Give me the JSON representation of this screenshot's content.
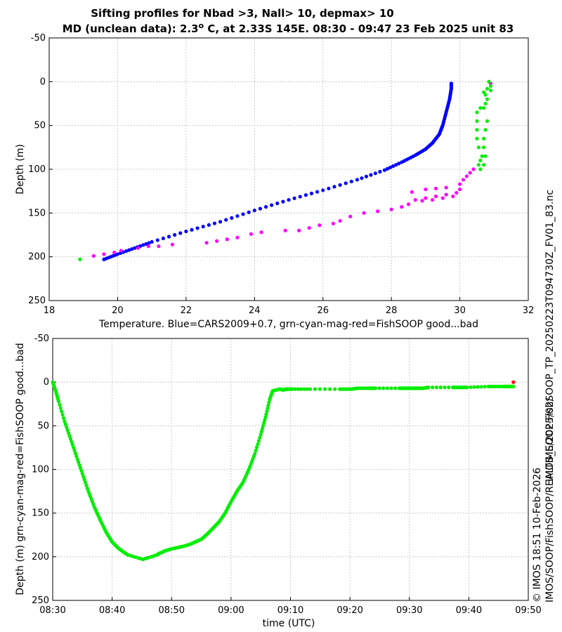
{
  "title_line1": "Sifting profiles for Nbad >3, Nall> 10, depmax> 10",
  "title_line2_prefix": "MD (unclean data): 2.3",
  "title_line2_degree": "o",
  "title_line2_suffix": " C, at 2.33S 145E. 08:30 - 09:47 23 Feb 2025 unit 83",
  "side_text_outer": "IMOS_SOOP-FishSOOP_TP_20250223T094730Z_FV01_83.nc",
  "side_text_inner_a": "IMOS/SOOP/FishSOOP/REALTIME/2025/02/",
  "side_text_inner_b": "© IMOS 18:51 10-Feb-2026",
  "colors": {
    "blue": "#0000ff",
    "green": "#00ee00",
    "magenta": "#ff00ff",
    "red": "#ff0000",
    "grid": "#bfbfbf"
  },
  "chart_data": [
    {
      "type": "scatter",
      "name": "temperature-depth-profile",
      "xlabel": "Temperature. Blue=CARS2009+0.7, grn-cyan-mag-red=FishSOOP good...bad",
      "ylabel": "Depth (m)",
      "xlim": [
        18,
        32
      ],
      "ylim": [
        -50,
        250
      ],
      "y_reversed": true,
      "grid": true,
      "xticks": [
        "18",
        "20",
        "22",
        "24",
        "26",
        "28",
        "30",
        "32"
      ],
      "yticks": [
        "-50",
        "0",
        "50",
        "100",
        "150",
        "200",
        "250"
      ],
      "series": [
        {
          "name": "CARS2009+0.7",
          "color": "blue",
          "points": [
            [
              29.75,
              2
            ],
            [
              29.75,
              8
            ],
            [
              29.7,
              20
            ],
            [
              29.6,
              35
            ],
            [
              29.5,
              50
            ],
            [
              29.4,
              60
            ],
            [
              29.2,
              70
            ],
            [
              29.0,
              77
            ],
            [
              28.7,
              84
            ],
            [
              28.3,
              92
            ],
            [
              27.8,
              101
            ],
            [
              27.0,
              112
            ],
            [
              26.0,
              124
            ],
            [
              25.0,
              135
            ],
            [
              24.0,
              147
            ],
            [
              23.0,
              160
            ],
            [
              22.0,
              171
            ],
            [
              21.0,
              183
            ],
            [
              20.5,
              190
            ],
            [
              20.0,
              197
            ],
            [
              19.6,
              203
            ]
          ]
        },
        {
          "name": "FishSOOP magenta",
          "color": "magenta",
          "points": [
            [
              19.3,
              199
            ],
            [
              19.6,
              197
            ],
            [
              19.9,
              195
            ],
            [
              20.1,
              193
            ],
            [
              20.6,
              190
            ],
            [
              20.9,
              188
            ],
            [
              21.2,
              188
            ],
            [
              21.6,
              186
            ],
            [
              22.6,
              184
            ],
            [
              22.9,
              182
            ],
            [
              23.2,
              180
            ],
            [
              23.5,
              178
            ],
            [
              23.9,
              174
            ],
            [
              24.2,
              172
            ],
            [
              24.9,
              170
            ],
            [
              25.3,
              170
            ],
            [
              25.6,
              167
            ],
            [
              25.9,
              164
            ],
            [
              26.3,
              162
            ],
            [
              26.5,
              159
            ],
            [
              26.8,
              154
            ],
            [
              27.2,
              150
            ],
            [
              27.6,
              148
            ],
            [
              28.0,
              146
            ],
            [
              28.3,
              143
            ],
            [
              28.5,
              140
            ],
            [
              28.7,
              135
            ],
            [
              29.0,
              133
            ],
            [
              29.3,
              131
            ],
            [
              29.6,
              129
            ],
            [
              29.9,
              127
            ],
            [
              30.0,
              123
            ],
            [
              30.0,
              117
            ],
            [
              30.1,
              112
            ],
            [
              30.2,
              108
            ],
            [
              30.3,
              104
            ],
            [
              30.4,
              100
            ],
            [
              28.6,
              126
            ],
            [
              29.0,
              123
            ],
            [
              29.3,
              122
            ],
            [
              29.6,
              121
            ],
            [
              28.9,
              136
            ],
            [
              29.2,
              135
            ],
            [
              29.5,
              133
            ],
            [
              29.8,
              131
            ],
            [
              30.85,
              0
            ],
            [
              30.9,
              2
            ]
          ]
        },
        {
          "name": "FishSOOP good (green)",
          "color": "green",
          "points": [
            [
              18.9,
              203
            ],
            [
              30.55,
              95
            ],
            [
              30.6,
              90
            ],
            [
              30.65,
              85
            ],
            [
              30.55,
              75
            ],
            [
              30.5,
              65
            ],
            [
              30.5,
              55
            ],
            [
              30.5,
              45
            ],
            [
              30.5,
              35
            ],
            [
              30.6,
              30
            ],
            [
              30.7,
              30
            ],
            [
              30.75,
              25
            ],
            [
              30.75,
              15
            ],
            [
              30.8,
              8
            ],
            [
              30.85,
              0
            ],
            [
              30.9,
              5
            ],
            [
              30.9,
              10
            ],
            [
              30.7,
              12
            ],
            [
              30.8,
              20
            ],
            [
              30.8,
              45
            ],
            [
              30.75,
              55
            ],
            [
              30.7,
              65
            ],
            [
              30.7,
              75
            ],
            [
              30.75,
              85
            ],
            [
              30.7,
              95
            ],
            [
              30.6,
              100
            ]
          ]
        }
      ]
    },
    {
      "type": "scatter",
      "name": "depth-time-series",
      "xlabel": "time (UTC)",
      "ylabel": "Depth (m) grn-cyan-mag-red=FishSOOP good...bad",
      "xlim": [
        "08:30",
        "09:50"
      ],
      "ylim": [
        -50,
        250
      ],
      "y_reversed": true,
      "grid": true,
      "xticks": [
        "08:30",
        "08:40",
        "08:50",
        "09:00",
        "09:10",
        "09:20",
        "09:30",
        "09:40",
        "09:50"
      ],
      "yticks": [
        "-50",
        "0",
        "50",
        "100",
        "150",
        "200",
        "250"
      ],
      "series": [
        {
          "name": "FishSOOP good (green)",
          "color": "green",
          "points": [
            [
              0,
              0
            ],
            [
              0.5,
              10
            ],
            [
              1,
              22
            ],
            [
              2,
              45
            ],
            [
              3,
              65
            ],
            [
              4,
              85
            ],
            [
              5,
              105
            ],
            [
              6,
              125
            ],
            [
              7,
              143
            ],
            [
              8,
              158
            ],
            [
              9,
              172
            ],
            [
              10,
              183
            ],
            [
              11,
              190
            ],
            [
              12,
              195
            ],
            [
              12.7,
              198
            ],
            [
              15.2,
              203
            ],
            [
              17.5,
              198
            ],
            [
              18,
              196
            ],
            [
              19,
              193
            ],
            [
              20,
              191
            ],
            [
              22,
              188
            ],
            [
              23,
              186
            ],
            [
              24,
              183
            ],
            [
              25,
              180
            ],
            [
              26,
              174
            ],
            [
              27,
              167
            ],
            [
              28,
              160
            ],
            [
              29,
              150
            ],
            [
              30,
              137
            ],
            [
              31,
              125
            ],
            [
              32,
              115
            ],
            [
              33,
              100
            ],
            [
              34,
              82
            ],
            [
              35,
              60
            ],
            [
              35.8,
              40
            ],
            [
              36.5,
              20
            ],
            [
              37,
              10
            ],
            [
              38.2,
              8
            ],
            [
              38.8,
              9
            ],
            [
              39.3,
              8
            ],
            [
              40.3,
              8
            ],
            [
              43.3,
              8
            ],
            [
              48.3,
              8
            ],
            [
              50.3,
              8
            ],
            [
              51.3,
              7
            ],
            [
              53.3,
              7
            ],
            [
              54.3,
              7
            ],
            [
              58.3,
              7
            ],
            [
              59,
              7
            ],
            [
              59.8,
              7
            ],
            [
              60.5,
              7
            ],
            [
              61.3,
              7
            ],
            [
              62.3,
              7
            ],
            [
              63.2,
              6
            ],
            [
              67.3,
              6
            ],
            [
              68,
              6
            ],
            [
              69,
              6
            ],
            [
              69.7,
              6
            ],
            [
              73.3,
              5
            ],
            [
              75.8,
              5
            ],
            [
              76.8,
              5
            ],
            [
              77.5,
              5
            ]
          ]
        },
        {
          "name": "FishSOOP bad (red)",
          "color": "red",
          "points": [
            [
              77.5,
              0
            ]
          ]
        }
      ]
    }
  ]
}
